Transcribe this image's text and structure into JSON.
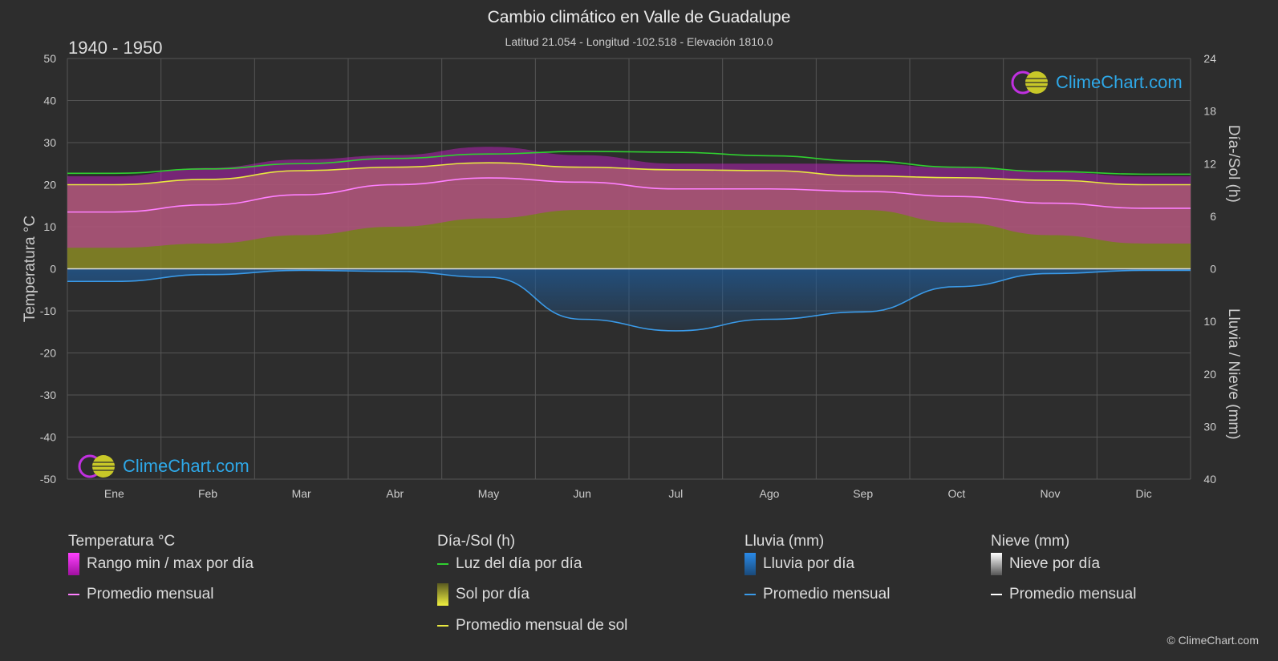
{
  "header": {
    "title": "Cambio climático en Valle de Guadalupe",
    "subtitle": "Latitud 21.054 - Longitud -102.518 - Elevación 1810.0",
    "period": "1940 - 1950"
  },
  "logo_text": "ClimeChart.com",
  "copyright": "© ClimeChart.com",
  "colors": {
    "background": "#2d2d2d",
    "temp_range": "#d020d0",
    "temp_avg": "#ff7fff",
    "daylight": "#30d030",
    "sunshine": "#c8c828",
    "sunshine_avg": "#e8e840",
    "rain": "#2a7fd4",
    "rain_avg": "#3a9ae8",
    "snow": "#ffffff",
    "logo": "#2ea8e8"
  },
  "legend": {
    "temperature": {
      "title": "Temperatura °C",
      "items": [
        "Rango min / max por día",
        "Promedio mensual"
      ]
    },
    "daysun": {
      "title": "Día-/Sol (h)",
      "items": [
        "Luz del día por día",
        "Sol por día",
        "Promedio mensual de sol"
      ]
    },
    "rain": {
      "title": "Lluvia (mm)",
      "items": [
        "Lluvia por día",
        "Promedio mensual"
      ]
    },
    "snow": {
      "title": "Nieve (mm)",
      "items": [
        "Nieve por día",
        "Promedio mensual"
      ]
    }
  },
  "chart_data": {
    "type": "area",
    "months": [
      "Ene",
      "Feb",
      "Mar",
      "Abr",
      "May",
      "Jun",
      "Jul",
      "Ago",
      "Sep",
      "Oct",
      "Nov",
      "Dic"
    ],
    "left_axis": {
      "label": "Temperatura °C",
      "ylim": [
        -50,
        50
      ],
      "ticks": [
        50,
        40,
        30,
        20,
        10,
        0,
        -10,
        -20,
        -30,
        -40,
        -50
      ]
    },
    "right_axis_top": {
      "label": "Día-/Sol (h)",
      "ylim": [
        0,
        24
      ],
      "ticks": [
        24,
        18,
        12,
        6,
        0
      ]
    },
    "right_axis_bottom": {
      "label": "Lluvia / Nieve (mm)",
      "ylim": [
        0,
        40
      ],
      "ticks": [
        0,
        10,
        20,
        30,
        40
      ]
    },
    "series": [
      {
        "name": "Promedio mensual",
        "group": "temperature",
        "unit": "°C",
        "values": [
          13.5,
          15.2,
          17.6,
          20.0,
          21.6,
          20.6,
          19.0,
          19.0,
          18.4,
          17.2,
          15.6,
          14.4
        ]
      },
      {
        "name": "Rango min / max por día",
        "group": "temperature",
        "unit": "°C",
        "min": [
          5,
          6,
          8,
          10,
          12,
          14,
          14,
          14,
          14,
          11,
          8,
          6
        ],
        "max": [
          22,
          24,
          26,
          27,
          29,
          27,
          25,
          25,
          25,
          24,
          23,
          22
        ]
      },
      {
        "name": "Luz del día por día",
        "group": "daysun",
        "unit": "h",
        "values": [
          10.9,
          11.4,
          12.0,
          12.6,
          13.1,
          13.4,
          13.3,
          12.9,
          12.3,
          11.6,
          11.1,
          10.8
        ]
      },
      {
        "name": "Promedio mensual de sol",
        "group": "daysun",
        "unit": "h",
        "values": [
          9.6,
          10.2,
          11.2,
          11.6,
          12.1,
          11.6,
          11.3,
          11.2,
          10.6,
          10.4,
          10.1,
          9.6
        ]
      },
      {
        "name": "Promedio mensual",
        "group": "rain",
        "unit": "mm",
        "values": [
          2.4,
          1.1,
          0.3,
          0.5,
          1.6,
          9.6,
          11.8,
          9.6,
          8.2,
          3.4,
          0.9,
          0.3
        ]
      },
      {
        "name": "Promedio mensual",
        "group": "snow",
        "unit": "mm",
        "values": [
          0,
          0,
          0,
          0,
          0,
          0,
          0,
          0,
          0,
          0,
          0,
          0
        ]
      }
    ],
    "grid": true
  }
}
